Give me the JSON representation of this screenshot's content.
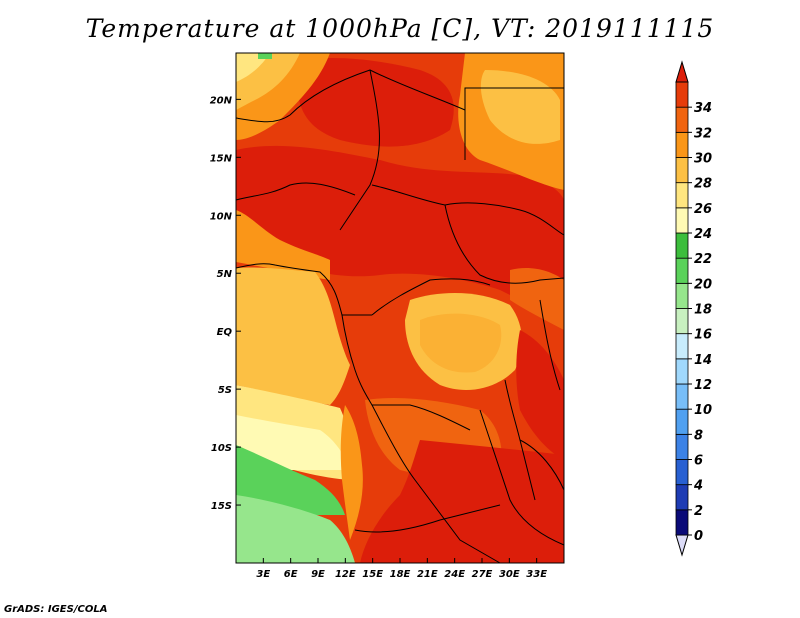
{
  "title": "Temperature at 1000hPa [C], VT: 2019111115",
  "credit": "GrADS: IGES/COLA",
  "map": {
    "lon_range": [
      0,
      36
    ],
    "lat_range": [
      -20,
      24
    ],
    "lon_ticks": [
      {
        "lon": 3,
        "label": "3E"
      },
      {
        "lon": 6,
        "label": "6E"
      },
      {
        "lon": 9,
        "label": "9E"
      },
      {
        "lon": 12,
        "label": "12E"
      },
      {
        "lon": 15,
        "label": "15E"
      },
      {
        "lon": 18,
        "label": "18E"
      },
      {
        "lon": 21,
        "label": "21E"
      },
      {
        "lon": 24,
        "label": "24E"
      },
      {
        "lon": 27,
        "label": "27E"
      },
      {
        "lon": 30,
        "label": "30E"
      },
      {
        "lon": 33,
        "label": "33E"
      }
    ],
    "lat_ticks": [
      {
        "lat": 20,
        "label": "20N"
      },
      {
        "lat": 15,
        "label": "15N"
      },
      {
        "lat": 10,
        "label": "10N"
      },
      {
        "lat": 5,
        "label": "5N"
      },
      {
        "lat": 0,
        "label": "EQ"
      },
      {
        "lat": -5,
        "label": "5S"
      },
      {
        "lat": -10,
        "label": "10S"
      },
      {
        "lat": -15,
        "label": "15S"
      }
    ]
  },
  "colorbar": {
    "levels": [
      "0",
      "2",
      "4",
      "6",
      "8",
      "10",
      "12",
      "14",
      "16",
      "18",
      "20",
      "22",
      "24",
      "26",
      "28",
      "30",
      "32",
      "34"
    ],
    "colors": [
      "#0a0a78",
      "#1e3cb4",
      "#2860d2",
      "#3c82e6",
      "#50a0f0",
      "#78bef8",
      "#a0d8fc",
      "#c8ecfc",
      "#c8f0c0",
      "#96e68c",
      "#5ad25a",
      "#3cbe3c",
      "#fffab4",
      "#ffe680",
      "#fcc044",
      "#fa9618",
      "#f06410",
      "#e63c0a",
      "#dc1e0a"
    ],
    "under_color": "#dcdcf8"
  }
}
